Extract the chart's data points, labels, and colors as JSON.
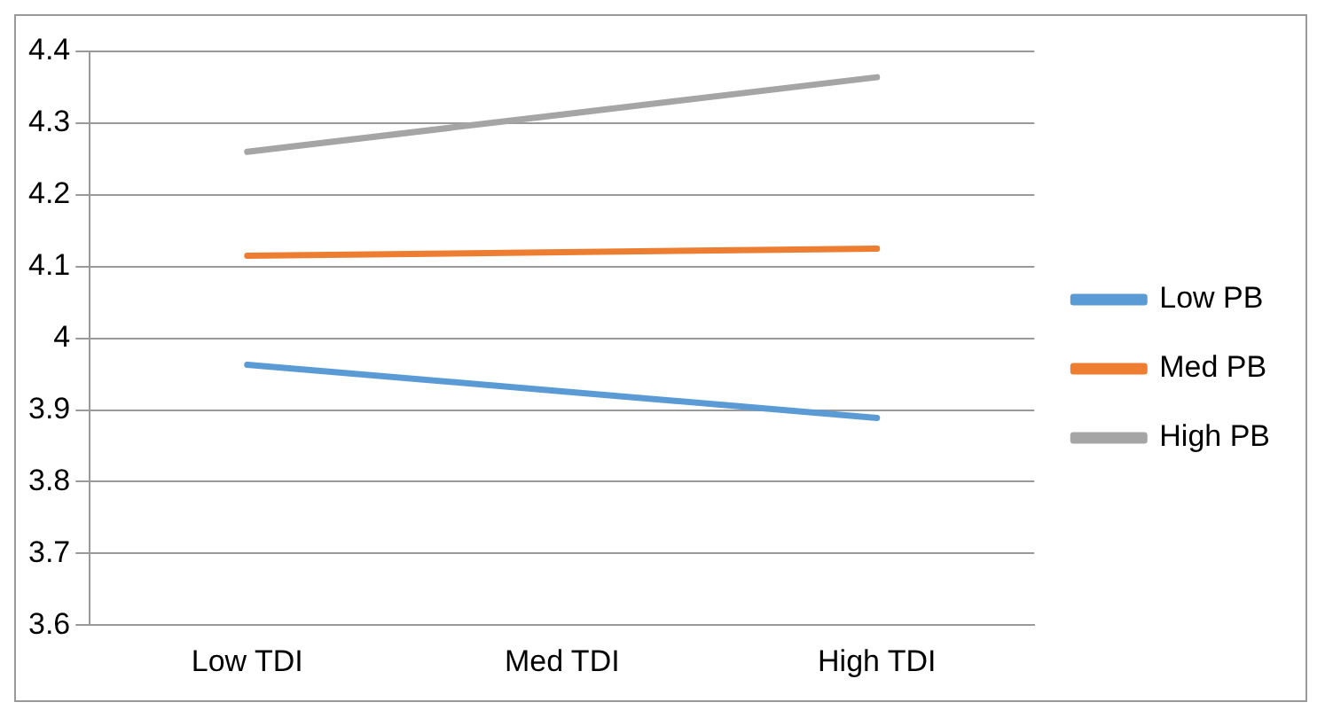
{
  "chart_data": {
    "type": "line",
    "categories": [
      "Low TDI",
      "Med TDI",
      "High TDI"
    ],
    "series": [
      {
        "name": "Low PB",
        "color": "#5b9bd5",
        "values": [
          3.963,
          3.926,
          3.889
        ]
      },
      {
        "name": "Med PB",
        "color": "#ed7d31",
        "values": [
          4.115,
          4.12,
          4.125
        ]
      },
      {
        "name": "High PB",
        "color": "#a5a5a5",
        "values": [
          4.26,
          4.312,
          4.364
        ]
      }
    ],
    "ylim": [
      3.6,
      4.4
    ],
    "yticks": [
      3.6,
      3.7,
      3.8,
      3.9,
      4,
      4.1,
      4.2,
      4.3,
      4.4
    ],
    "grid": "y",
    "legend": "right",
    "marker": "none",
    "line_style": "solid"
  }
}
